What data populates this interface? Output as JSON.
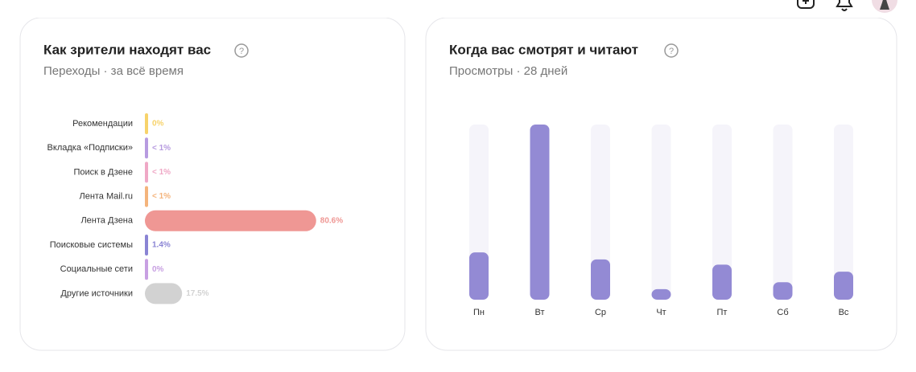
{
  "chart_data": [
    {
      "type": "bar",
      "orientation": "horizontal",
      "title": "Как зрители находят вас",
      "subtitle": "Переходы · за всё время",
      "categories": [
        "Рекомендации",
        "Вкладка «Подписки»",
        "Поиск в Дзене",
        "Лента Mail.ru",
        "Лента Дзена",
        "Поисковые системы",
        "Социальные сети",
        "Другие источники"
      ],
      "values": [
        0,
        0.5,
        0.5,
        0.5,
        80.6,
        1.4,
        0,
        17.5
      ],
      "value_labels": [
        "0%",
        "< 1%",
        "< 1%",
        "< 1%",
        "80.6%",
        "1.4%",
        "0%",
        "17.5%"
      ],
      "colors": [
        "#f7d36b",
        "#b79be0",
        "#efa8c6",
        "#f4b47c",
        "#ef9794",
        "#8a84d4",
        "#c8a0e2",
        "#d2d2d2"
      ],
      "xlim": [
        0,
        100
      ]
    },
    {
      "type": "bar",
      "orientation": "vertical",
      "title": "Когда вас смотрят и читают",
      "subtitle": "Просмотры · 28 дней",
      "categories": [
        "Пн",
        "Вт",
        "Ср",
        "Чт",
        "Пт",
        "Сб",
        "Вс"
      ],
      "values": [
        27,
        100,
        23,
        6,
        20,
        10,
        16
      ],
      "color": "#938ad4",
      "track_color": "#f5f4fa",
      "ylim": [
        0,
        100
      ]
    }
  ]
}
